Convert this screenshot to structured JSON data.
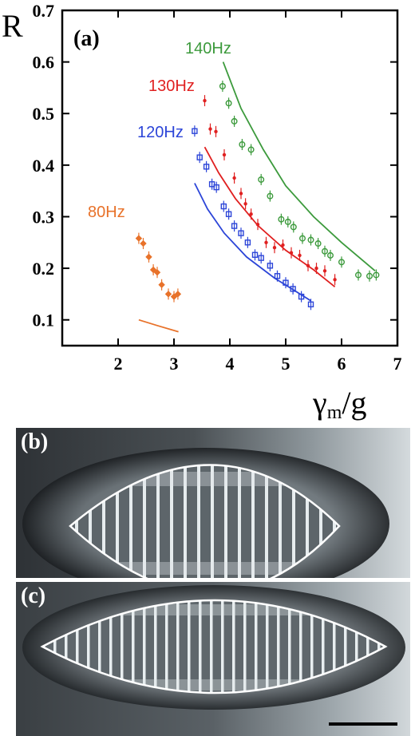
{
  "chart_data": {
    "type": "scatter",
    "panel_label": "(a)",
    "xlabel_main": "γ",
    "xlabel_sub": "m",
    "xlabel_rest": "/g",
    "ylabel": "R",
    "xlim": [
      1,
      7
    ],
    "ylim": [
      0.05,
      0.7
    ],
    "xticks": [
      2,
      3,
      4,
      5,
      6,
      7
    ],
    "yticks": [
      0.1,
      0.2,
      0.3,
      0.4,
      0.5,
      0.6,
      0.7
    ],
    "grid": false,
    "series": [
      {
        "name": "80Hz",
        "color": "#e8722a",
        "marker": "diamond",
        "points": [
          [
            2.37,
            0.258
          ],
          [
            2.45,
            0.248
          ],
          [
            2.55,
            0.222
          ],
          [
            2.63,
            0.197
          ],
          [
            2.7,
            0.192
          ],
          [
            2.78,
            0.168
          ],
          [
            2.9,
            0.15
          ],
          [
            3.0,
            0.145
          ],
          [
            3.07,
            0.15
          ]
        ],
        "fit": [
          [
            2.37,
            0.1
          ],
          [
            2.7,
            0.089
          ],
          [
            3.08,
            0.077
          ]
        ]
      },
      {
        "name": "120Hz",
        "color": "#2c45d8",
        "marker": "square",
        "points": [
          [
            3.37,
            0.466
          ],
          [
            3.46,
            0.415
          ],
          [
            3.58,
            0.397
          ],
          [
            3.68,
            0.363
          ],
          [
            3.76,
            0.357
          ],
          [
            3.89,
            0.32
          ],
          [
            3.98,
            0.305
          ],
          [
            4.08,
            0.282
          ],
          [
            4.2,
            0.268
          ],
          [
            4.32,
            0.25
          ],
          [
            4.45,
            0.226
          ],
          [
            4.56,
            0.22
          ],
          [
            4.72,
            0.205
          ],
          [
            4.85,
            0.185
          ],
          [
            5.0,
            0.172
          ],
          [
            5.13,
            0.16
          ],
          [
            5.28,
            0.145
          ],
          [
            5.45,
            0.13
          ]
        ],
        "fit": [
          [
            3.37,
            0.365
          ],
          [
            3.6,
            0.315
          ],
          [
            3.9,
            0.268
          ],
          [
            4.3,
            0.222
          ],
          [
            4.8,
            0.181
          ],
          [
            5.45,
            0.137
          ]
        ]
      },
      {
        "name": "130Hz",
        "color": "#e02020",
        "marker": "dot",
        "points": [
          [
            3.55,
            0.525
          ],
          [
            3.65,
            0.47
          ],
          [
            3.75,
            0.465
          ],
          [
            3.9,
            0.42
          ],
          [
            4.08,
            0.375
          ],
          [
            4.2,
            0.345
          ],
          [
            4.28,
            0.325
          ],
          [
            4.38,
            0.305
          ],
          [
            4.5,
            0.285
          ],
          [
            4.65,
            0.25
          ],
          [
            4.8,
            0.24
          ],
          [
            4.95,
            0.245
          ],
          [
            5.1,
            0.23
          ],
          [
            5.25,
            0.225
          ],
          [
            5.4,
            0.205
          ],
          [
            5.55,
            0.2
          ],
          [
            5.7,
            0.195
          ],
          [
            5.88,
            0.178
          ]
        ],
        "fit": [
          [
            3.55,
            0.435
          ],
          [
            3.8,
            0.385
          ],
          [
            4.1,
            0.335
          ],
          [
            4.5,
            0.283
          ],
          [
            5.0,
            0.235
          ],
          [
            5.5,
            0.197
          ],
          [
            5.88,
            0.164
          ]
        ]
      },
      {
        "name": "140Hz",
        "color": "#3c9a3c",
        "marker": "circle",
        "points": [
          [
            3.87,
            0.553
          ],
          [
            3.98,
            0.52
          ],
          [
            4.08,
            0.485
          ],
          [
            4.22,
            0.44
          ],
          [
            4.38,
            0.43
          ],
          [
            4.56,
            0.372
          ],
          [
            4.72,
            0.34
          ],
          [
            4.92,
            0.295
          ],
          [
            5.04,
            0.29
          ],
          [
            5.14,
            0.28
          ],
          [
            5.3,
            0.258
          ],
          [
            5.45,
            0.255
          ],
          [
            5.58,
            0.248
          ],
          [
            5.7,
            0.233
          ],
          [
            5.8,
            0.225
          ],
          [
            6.0,
            0.212
          ],
          [
            6.3,
            0.187
          ],
          [
            6.5,
            0.185
          ],
          [
            6.62,
            0.187
          ]
        ],
        "fit": [
          [
            3.88,
            0.6
          ],
          [
            4.2,
            0.51
          ],
          [
            4.6,
            0.43
          ],
          [
            5.0,
            0.36
          ],
          [
            5.5,
            0.3
          ],
          [
            6.0,
            0.25
          ],
          [
            6.6,
            0.195
          ]
        ]
      }
    ]
  },
  "photos": [
    {
      "label": "(b)"
    },
    {
      "label": "(c)"
    }
  ],
  "scale_bar": "scale-bar"
}
